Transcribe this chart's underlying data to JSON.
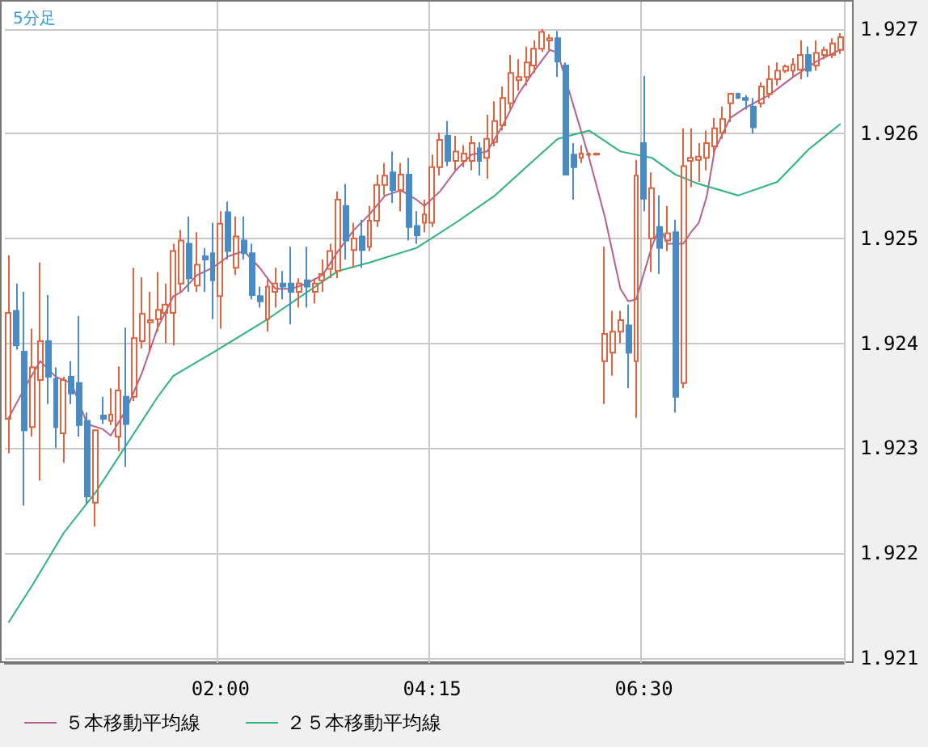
{
  "chart_data": {
    "type": "candlestick",
    "title": "5分足",
    "categories": [
      null,
      null,
      null,
      null,
      null,
      null,
      null,
      null,
      null,
      null,
      null,
      null,
      null,
      null,
      null,
      null,
      null,
      null,
      null,
      null,
      null,
      null,
      null,
      null,
      null,
      null,
      null,
      "02:00",
      null,
      null,
      null,
      null,
      null,
      null,
      null,
      null,
      null,
      null,
      null,
      null,
      null,
      null,
      null,
      null,
      null,
      null,
      null,
      null,
      null,
      null,
      null,
      null,
      null,
      null,
      "04:15",
      null,
      null,
      null,
      null,
      null,
      null,
      null,
      null,
      null,
      null,
      null,
      null,
      null,
      null,
      null,
      null,
      null,
      null,
      null,
      null,
      null,
      null,
      null,
      null,
      null,
      null,
      "06:30",
      null,
      null,
      null,
      null,
      null,
      null,
      null,
      null,
      null,
      null,
      null,
      null,
      null,
      null,
      null,
      null,
      null,
      null,
      null,
      null,
      null,
      null,
      null,
      null,
      null
    ],
    "ohlc": [
      [
        1.92328,
        1.92484,
        1.92295,
        1.92429
      ],
      [
        1.92431,
        1.92457,
        1.92394,
        1.92398
      ],
      [
        1.92392,
        1.92449,
        1.92245,
        1.92317
      ],
      [
        1.9232,
        1.92414,
        1.92311,
        1.92377
      ],
      [
        1.92365,
        1.92477,
        1.92269,
        1.92402
      ],
      [
        1.92402,
        1.92446,
        1.92342,
        1.92368
      ],
      [
        1.92366,
        1.92377,
        1.923,
        1.9232
      ],
      [
        1.92314,
        1.92368,
        1.92286,
        1.92365
      ],
      [
        1.92368,
        1.92383,
        1.92342,
        1.92352
      ],
      [
        1.92362,
        1.92426,
        1.92311,
        1.92322
      ],
      [
        1.92326,
        1.92334,
        1.92246,
        1.92254
      ],
      [
        1.92248,
        1.92318,
        1.92225,
        1.92317
      ],
      [
        1.92331,
        1.92349,
        1.92323,
        1.92328
      ],
      [
        1.92326,
        1.92357,
        1.92322,
        1.92332
      ],
      [
        1.92311,
        1.92378,
        1.92297,
        1.92355
      ],
      [
        1.92349,
        1.92415,
        1.92282,
        1.92323
      ],
      [
        1.92349,
        1.92472,
        1.92345,
        1.92405
      ],
      [
        1.92402,
        1.92463,
        1.92395,
        1.92428
      ],
      [
        1.9242,
        1.92449,
        1.92392,
        1.92422
      ],
      [
        1.92423,
        1.92468,
        1.92411,
        1.92432
      ],
      [
        1.92429,
        1.92457,
        1.924,
        1.92437
      ],
      [
        1.92429,
        1.92495,
        1.92398,
        1.92488
      ],
      [
        1.92457,
        1.92508,
        1.92449,
        1.92498
      ],
      [
        1.92495,
        1.92521,
        1.92449,
        1.92462
      ],
      [
        1.92455,
        1.92506,
        1.92449,
        1.92475
      ],
      [
        1.92483,
        1.92491,
        1.92449,
        1.9248
      ],
      [
        1.92486,
        1.92515,
        1.92423,
        1.9246
      ],
      [
        1.92445,
        1.92526,
        1.92414,
        1.92514
      ],
      [
        1.92525,
        1.92535,
        1.9248,
        1.92488
      ],
      [
        1.92472,
        1.92521,
        1.92465,
        1.92502
      ],
      [
        1.92498,
        1.92521,
        1.9248,
        1.92486
      ],
      [
        1.92486,
        1.92495,
        1.92442,
        1.92446
      ],
      [
        1.92445,
        1.92454,
        1.92434,
        1.9244
      ],
      [
        1.92423,
        1.92462,
        1.92411,
        1.92454
      ],
      [
        1.92449,
        1.92472,
        1.92434,
        1.92457
      ],
      [
        1.92457,
        1.92469,
        1.92442,
        1.92454
      ],
      [
        1.92457,
        1.92492,
        1.92418,
        1.92449
      ],
      [
        1.92449,
        1.92462,
        1.92434,
        1.92457
      ],
      [
        1.9246,
        1.92492,
        1.92434,
        1.92454
      ],
      [
        1.92449,
        1.92462,
        1.92438,
        1.92457
      ],
      [
        1.9246,
        1.9248,
        1.92449,
        1.92466
      ],
      [
        1.92471,
        1.92495,
        1.92462,
        1.92488
      ],
      [
        1.92469,
        1.92545,
        1.92462,
        1.92537
      ],
      [
        1.92531,
        1.92552,
        1.9248,
        1.92498
      ],
      [
        1.92489,
        1.92515,
        1.92472,
        1.925
      ],
      [
        1.92502,
        1.92518,
        1.92472,
        1.92489
      ],
      [
        1.92492,
        1.92531,
        1.92488,
        1.92517
      ],
      [
        1.92517,
        1.92561,
        1.92511,
        1.92551
      ],
      [
        1.92551,
        1.92572,
        1.92541,
        1.9256
      ],
      [
        1.92563,
        1.92583,
        1.92534,
        1.92546
      ],
      [
        1.92546,
        1.92572,
        1.92526,
        1.92561
      ],
      [
        1.92561,
        1.92577,
        1.92498,
        1.92511
      ],
      [
        1.92512,
        1.92526,
        1.92495,
        1.92503
      ],
      [
        1.92515,
        1.92537,
        1.92506,
        1.92523
      ],
      [
        1.92515,
        1.9258,
        1.92511,
        1.92568
      ],
      [
        1.92568,
        1.92601,
        1.9256,
        1.92594
      ],
      [
        1.92598,
        1.92612,
        1.92569,
        1.92574
      ],
      [
        1.92574,
        1.92598,
        1.92565,
        1.92583
      ],
      [
        1.92574,
        1.92589,
        1.92568,
        1.92581
      ],
      [
        1.92574,
        1.92598,
        1.92565,
        1.92591
      ],
      [
        1.92586,
        1.92592,
        1.9256,
        1.92574
      ],
      [
        1.92577,
        1.92618,
        1.92557,
        1.92595
      ],
      [
        1.92592,
        1.92631,
        1.92588,
        1.92612
      ],
      [
        1.92608,
        1.92645,
        1.92603,
        1.92634
      ],
      [
        1.92629,
        1.92675,
        1.92623,
        1.92658
      ],
      [
        1.92651,
        1.92671,
        1.92641,
        1.92654
      ],
      [
        1.92654,
        1.92683,
        1.92646,
        1.92668
      ],
      [
        1.92665,
        1.92689,
        1.92658,
        1.92681
      ],
      [
        1.92681,
        1.927,
        1.92678,
        1.92697
      ],
      [
        1.92689,
        1.92695,
        1.9268,
        1.92691
      ],
      [
        1.92691,
        1.92698,
        1.92654,
        1.92669
      ],
      [
        1.92665,
        1.92668,
        1.92561,
        1.92561
      ],
      [
        1.9258,
        1.92591,
        1.92537,
        1.92568
      ],
      [
        1.92577,
        1.92589,
        1.92572,
        1.92581
      ],
      [
        1.9258,
        1.92582,
        1.92578,
        1.9258
      ],
      [
        1.9258,
        1.92582,
        1.92579,
        1.92581
      ],
      [
        1.92383,
        1.92492,
        1.92342,
        1.92409
      ],
      [
        1.92391,
        1.92431,
        1.92369,
        1.92411
      ],
      [
        1.92411,
        1.92431,
        1.924,
        1.92422
      ],
      [
        1.92417,
        1.92437,
        1.92357,
        1.92391
      ],
      [
        1.92383,
        1.92575,
        1.92329,
        1.9256
      ],
      [
        1.92591,
        1.92655,
        1.92526,
        1.92538
      ],
      [
        1.925,
        1.92563,
        1.92468,
        1.92548
      ],
      [
        1.92511,
        1.92541,
        1.92466,
        1.92491
      ],
      [
        1.92498,
        1.92531,
        1.92488,
        1.92505
      ],
      [
        1.92506,
        1.92518,
        1.92334,
        1.92349
      ],
      [
        1.92362,
        1.92605,
        1.92357,
        1.92569
      ],
      [
        1.92574,
        1.92605,
        1.92549,
        1.92577
      ],
      [
        1.92575,
        1.92591,
        1.92554,
        1.92578
      ],
      [
        1.92577,
        1.92603,
        1.92565,
        1.92591
      ],
      [
        1.92588,
        1.92615,
        1.9258,
        1.92605
      ],
      [
        1.92601,
        1.92626,
        1.92595,
        1.92614
      ],
      [
        1.92629,
        1.92638,
        1.92611,
        1.92638
      ],
      [
        1.92638,
        1.92639,
        1.92634,
        1.92634
      ],
      [
        1.92634,
        1.92637,
        1.92623,
        1.92632
      ],
      [
        1.92626,
        1.92634,
        1.926,
        1.92606
      ],
      [
        1.92629,
        1.92649,
        1.92625,
        1.92645
      ],
      [
        1.92638,
        1.92665,
        1.92634,
        1.92652
      ],
      [
        1.92652,
        1.92668,
        1.92646,
        1.9266
      ],
      [
        1.9266,
        1.92666,
        1.92658,
        1.92664
      ],
      [
        1.9266,
        1.92672,
        1.92654,
        1.92666
      ],
      [
        1.92661,
        1.92689,
        1.92652,
        1.92675
      ],
      [
        1.92675,
        1.92683,
        1.92654,
        1.9266
      ],
      [
        1.92665,
        1.92689,
        1.9266,
        1.92677
      ],
      [
        1.92675,
        1.92683,
        1.92671,
        1.9268
      ],
      [
        1.92675,
        1.92691,
        1.92672,
        1.92686
      ],
      [
        1.9268,
        1.92696,
        1.92676,
        1.92692
      ]
    ],
    "colors": [
      "#dc6440",
      "#4b8bc4",
      "#4b8bc4",
      "#dc6440",
      "#dc6440",
      "#4b8bc4",
      "#4b8bc4",
      "#dc6440",
      "#4b8bc4",
      "#4b8bc4",
      "#4b8bc4",
      "#dc6440",
      "#4b8bc4",
      "#dc6440",
      "#dc6440",
      "#4b8bc4",
      "#dc6440",
      "#dc6440",
      "#dc6440",
      "#dc6440",
      "#dc6440",
      "#dc6440",
      "#dc6440",
      "#4b8bc4",
      "#dc6440",
      "#4b8bc4",
      "#4b8bc4",
      "#dc6440",
      "#4b8bc4",
      "#dc6440",
      "#4b8bc4",
      "#4b8bc4",
      "#4b8bc4",
      "#dc6440",
      "#dc6440",
      "#4b8bc4",
      "#4b8bc4",
      "#dc6440",
      "#4b8bc4",
      "#dc6440",
      "#dc6440",
      "#dc6440",
      "#dc6440",
      "#4b8bc4",
      "#dc6440",
      "#4b8bc4",
      "#dc6440",
      "#dc6440",
      "#dc6440",
      "#4b8bc4",
      "#dc6440",
      "#4b8bc4",
      "#4b8bc4",
      "#dc6440",
      "#dc6440",
      "#dc6440",
      "#4b8bc4",
      "#dc6440",
      "#dc6440",
      "#dc6440",
      "#4b8bc4",
      "#dc6440",
      "#dc6440",
      "#dc6440",
      "#dc6440",
      "#dc6440",
      "#dc6440",
      "#dc6440",
      "#dc6440",
      "#dc6440",
      "#4b8bc4",
      "#4b8bc4",
      "#4b8bc4",
      "#dc6440",
      "#dc6440",
      "#dc6440",
      "#dc6440",
      "#dc6440",
      "#dc6440",
      "#4b8bc4",
      "#dc6440",
      "#4b8bc4",
      "#dc6440",
      "#4b8bc4",
      "#dc6440",
      "#4b8bc4",
      "#dc6440",
      "#dc6440",
      "#dc6440",
      "#dc6440",
      "#dc6440",
      "#dc6440",
      "#dc6440",
      "#4b8bc4",
      "#4b8bc4",
      "#4b8bc4",
      "#dc6440",
      "#dc6440",
      "#dc6440",
      "#dc6440",
      "#dc6440",
      "#dc6440",
      "#4b8bc4",
      "#dc6440",
      "#dc6440",
      "#dc6440",
      "#dc6440"
    ],
    "series": [
      {
        "type": "line",
        "name": "５本移動平均線",
        "color": "#b5608f",
        "values": [
          1.92329,
          null,
          1.92357,
          null,
          1.92383,
          null,
          1.92368,
          null,
          1.92362,
          null,
          1.92323,
          null,
          1.92318,
          1.92312,
          null,
          1.92337,
          null,
          1.92372,
          null,
          1.92415,
          null,
          1.92445,
          1.92449,
          null,
          1.92465,
          null,
          1.92472,
          null,
          1.92483,
          null,
          1.92488,
          null,
          1.92472,
          null,
          1.92452,
          null,
          1.92452,
          null,
          1.92457,
          null,
          1.92465,
          null,
          1.92488,
          null,
          1.92508,
          null,
          1.92523,
          null,
          1.92541,
          null,
          1.92546,
          null,
          1.92537,
          1.92531,
          null,
          1.92545,
          null,
          1.92565,
          null,
          1.9258,
          null,
          1.92583,
          null,
          1.92608,
          null,
          1.92638,
          null,
          1.9266,
          null,
          1.9268,
          1.92677,
          null,
          null,
          null,
          1.92577,
          null,
          1.92521,
          null,
          1.92452,
          1.9244,
          1.92442,
          null,
          1.92492,
          1.92511,
          1.92495,
          null,
          1.92495,
          1.92506,
          1.92515,
          1.9254,
          1.92584,
          null,
          1.92615,
          null,
          1.92625,
          null,
          null,
          1.92637,
          null,
          null,
          1.92654,
          null,
          null,
          1.92669,
          null,
          null,
          1.9268
        ]
      },
      {
        "type": "line",
        "name": "２５本移動平均線",
        "color": "#2db37a",
        "values": [
          1.92134,
          null,
          null,
          1.92169,
          null,
          null,
          null,
          1.92219,
          null,
          null,
          null,
          1.92257,
          null,
          null,
          null,
          1.92303,
          null,
          null,
          null,
          1.92349,
          null,
          1.92369,
          null,
          null,
          null,
          null,
          1.92391,
          null,
          null,
          null,
          null,
          null,
          null,
          1.92423,
          null,
          null,
          null,
          null,
          null,
          null,
          null,
          null,
          1.92469,
          null,
          null,
          null,
          1.92477,
          null,
          null,
          null,
          null,
          null,
          1.92491,
          null,
          null,
          null,
          null,
          1.92515,
          null,
          null,
          null,
          null,
          1.92541,
          null,
          null,
          null,
          null,
          1.92575,
          null,
          null,
          1.92595,
          null,
          null,
          null,
          1.92603,
          null,
          null,
          null,
          1.92583,
          null,
          null,
          null,
          1.92577,
          null,
          null,
          1.92561,
          null,
          null,
          1.92552,
          null,
          null,
          null,
          null,
          1.92541,
          null,
          null,
          null,
          null,
          1.92554,
          null,
          null,
          null,
          1.92585,
          null,
          null,
          null,
          1.92609
        ]
      }
    ],
    "ylim": [
      1.92095,
      1.92726
    ],
    "yticks": [
      1.921,
      1.922,
      1.923,
      1.924,
      1.925,
      1.926,
      1.927
    ],
    "grid": true,
    "legend": "bottom left",
    "marker": "none",
    "line_style": "solid"
  }
}
